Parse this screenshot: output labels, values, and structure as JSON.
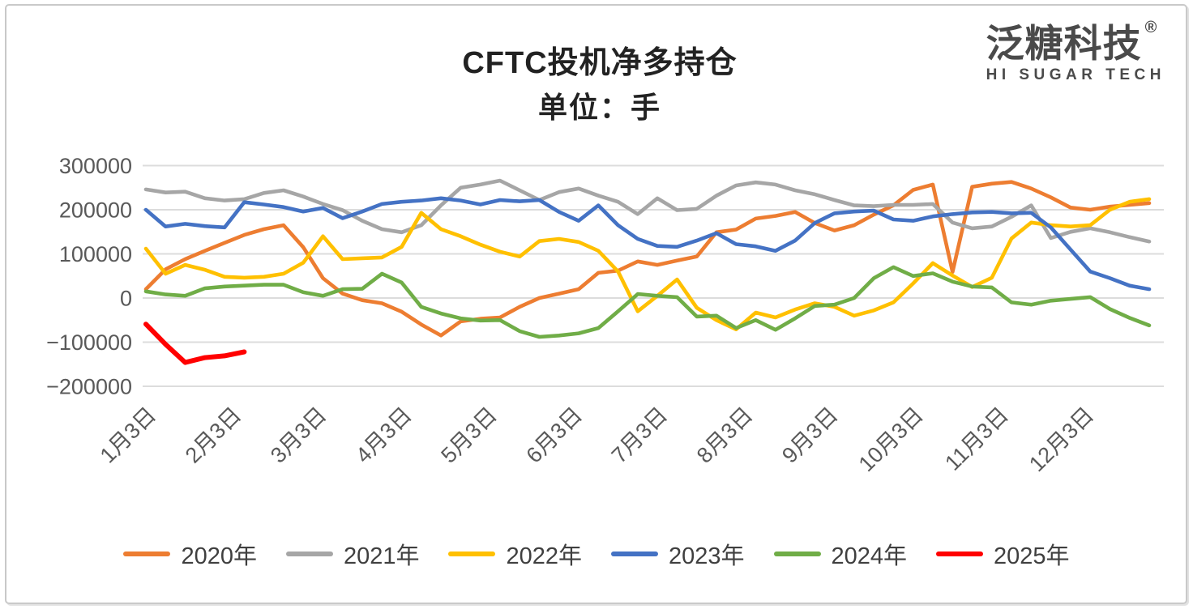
{
  "title": "CFTC投机净多持仓",
  "subtitle": "单位：手",
  "logo": {
    "cn": "泛糖科技",
    "reg": "®",
    "en": "HI SUGAR TECH"
  },
  "colors": {
    "axis_text": "#595959",
    "grid": "#dcdcdc",
    "title_text": "#222222",
    "logo_text": "#4a4a4a"
  },
  "chart_data": {
    "type": "line",
    "title": "CFTC投机净多持仓",
    "unit_label": "单位：手",
    "grid": true,
    "legend_position": "bottom",
    "points_per_series": 52,
    "ylim": [
      -200000,
      300000
    ],
    "y_tick_values": [
      300000,
      200000,
      100000,
      0,
      -100000,
      -200000
    ],
    "x_tick_labels": [
      "1月3日",
      "2月3日",
      "3月3日",
      "4月3日",
      "5月3日",
      "6月3日",
      "7月3日",
      "8月3日",
      "9月3日",
      "10月3日",
      "11月3日",
      "12月3日"
    ],
    "series": [
      {
        "name": "2020年",
        "color": "#ED7D31",
        "line_width": 4.6,
        "values": [
          20000,
          65000,
          88000,
          107000,
          125000,
          143000,
          156000,
          165000,
          115000,
          45000,
          10000,
          -5000,
          -12000,
          -31000,
          -60000,
          -85000,
          -53000,
          -47000,
          -44000,
          -20000,
          0,
          10000,
          20000,
          57000,
          62000,
          83000,
          75000,
          85000,
          94000,
          149000,
          155000,
          180000,
          186000,
          195000,
          170000,
          153000,
          165000,
          189000,
          210000,
          245000,
          257000,
          59000,
          252000,
          259000,
          263000,
          248000,
          228000,
          205000,
          200000,
          207000,
          211000,
          215000
        ]
      },
      {
        "name": "2021年",
        "color": "#A6A6A6",
        "line_width": 4.6,
        "values": [
          246000,
          239000,
          241000,
          226000,
          221000,
          224000,
          238000,
          244000,
          230000,
          213000,
          199000,
          175000,
          156000,
          149000,
          165000,
          210000,
          250000,
          257000,
          266000,
          244000,
          222000,
          240000,
          248000,
          232000,
          218000,
          190000,
          226000,
          199000,
          202000,
          232000,
          255000,
          262000,
          257000,
          244000,
          235000,
          222000,
          210000,
          208000,
          211000,
          211000,
          213000,
          171000,
          158000,
          162000,
          184000,
          210000,
          136000,
          150000,
          158000,
          149000,
          138000,
          128000
        ]
      },
      {
        "name": "2022年",
        "color": "#FFC000",
        "line_width": 4.6,
        "values": [
          112000,
          55000,
          75000,
          64000,
          48000,
          46000,
          48000,
          55000,
          80000,
          140000,
          88000,
          90000,
          92000,
          116000,
          193000,
          156000,
          140000,
          121000,
          105000,
          94000,
          129000,
          134000,
          127000,
          107000,
          60000,
          -30000,
          5000,
          42000,
          -22000,
          -50000,
          -71000,
          -33000,
          -44000,
          -26000,
          -12000,
          -20000,
          -40000,
          -28000,
          -10000,
          33000,
          79000,
          51000,
          25000,
          46000,
          135000,
          171000,
          165000,
          162000,
          165000,
          200000,
          218000,
          224000
        ]
      },
      {
        "name": "2023年",
        "color": "#4472C4",
        "line_width": 4.6,
        "values": [
          200000,
          162000,
          168000,
          163000,
          160000,
          217000,
          212000,
          206000,
          196000,
          204000,
          181000,
          196000,
          213000,
          218000,
          221000,
          226000,
          221000,
          212000,
          222000,
          219000,
          222000,
          195000,
          175000,
          210000,
          165000,
          134000,
          118000,
          116000,
          130000,
          147000,
          122000,
          117000,
          107000,
          130000,
          170000,
          192000,
          196000,
          198000,
          178000,
          175000,
          185000,
          190000,
          194000,
          195000,
          192000,
          193000,
          160000,
          110000,
          60000,
          45000,
          28000,
          20000
        ]
      },
      {
        "name": "2024年",
        "color": "#70AD47",
        "line_width": 4.6,
        "values": [
          15000,
          8000,
          5000,
          22000,
          26000,
          28000,
          30000,
          30000,
          13000,
          5000,
          20000,
          21000,
          55000,
          35000,
          -20000,
          -35000,
          -46000,
          -51000,
          -50000,
          -75000,
          -88000,
          -85000,
          -80000,
          -68000,
          -30000,
          9000,
          5000,
          2000,
          -42000,
          -40000,
          -68000,
          -50000,
          -72000,
          -46000,
          -18000,
          -15000,
          0,
          45000,
          70000,
          50000,
          56000,
          37000,
          26000,
          24000,
          -10000,
          -15000,
          -6000,
          -2000,
          2000,
          -25000,
          -45000,
          -62000
        ]
      },
      {
        "name": "2025年",
        "color": "#FF0000",
        "line_width": 6,
        "values": [
          -59000,
          -105000,
          -146000,
          -135000,
          -131000,
          -122000
        ]
      }
    ]
  }
}
